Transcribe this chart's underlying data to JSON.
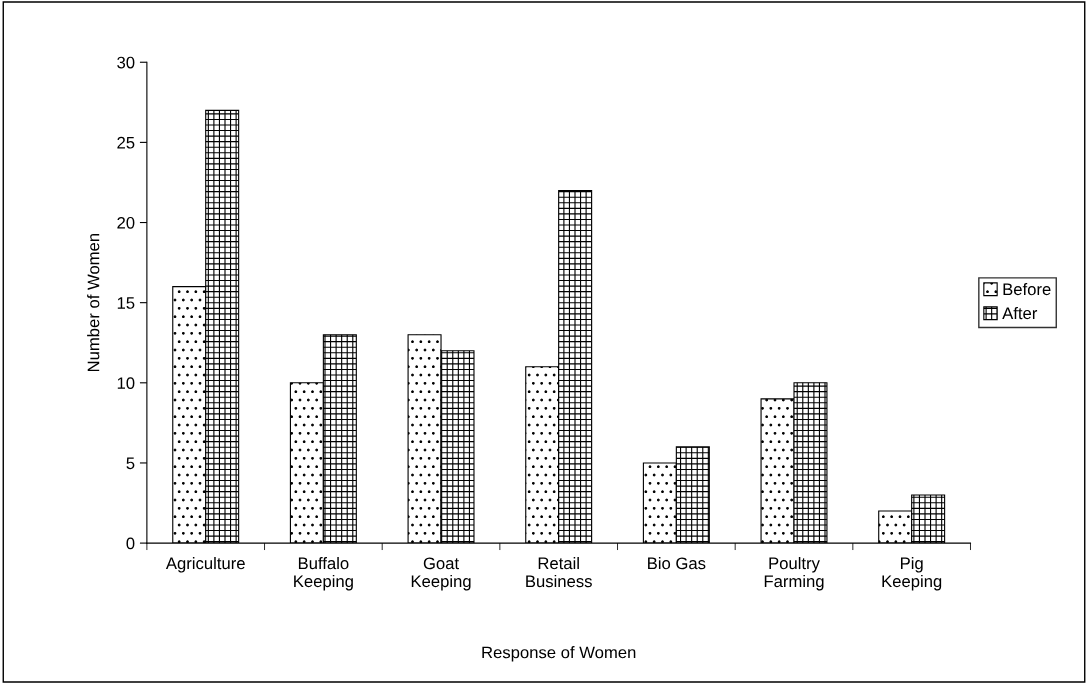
{
  "chart_data": {
    "type": "bar",
    "xlabel": "Response of Women",
    "ylabel": "Number of Women",
    "categories": [
      "Agriculture",
      "Buffalo\nKeeping",
      "Goat\nKeeping",
      "Retail\nBusiness",
      "Bio Gas",
      "Poultry\nFarming",
      "Pig\nKeeping"
    ],
    "series": [
      {
        "name": "Before",
        "color": "#000000",
        "values": [
          16,
          10,
          13,
          11,
          5,
          9,
          2
        ]
      },
      {
        "name": "After",
        "color": "#000000",
        "values": [
          27,
          13,
          12,
          22,
          6,
          10,
          3
        ]
      }
    ],
    "ylim": [
      0,
      30
    ],
    "yticks": [
      0,
      5,
      10,
      15,
      20,
      25,
      30
    ],
    "legend": "right"
  }
}
